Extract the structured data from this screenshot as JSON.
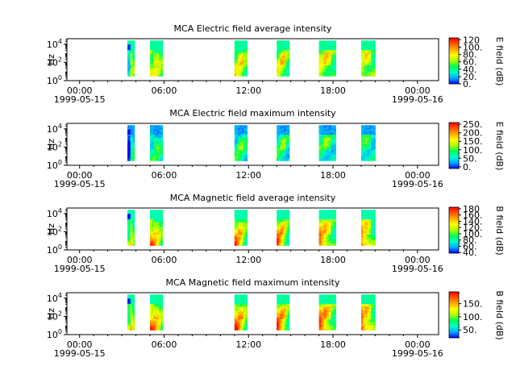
{
  "figure": {
    "colormap": [
      "#0000ff",
      "#00aaff",
      "#00ffcc",
      "#00ff55",
      "#aaff00",
      "#ffff00",
      "#ffaa00",
      "#ff5500",
      "#ff0000"
    ]
  },
  "shared": {
    "x_ticks": [
      "00:00",
      "06:00",
      "12:00",
      "18:00",
      "00:00"
    ],
    "x_tick_hours": [
      0,
      6,
      12,
      18,
      24
    ],
    "x_date_start": "1999-05-15",
    "x_date_end": "1999-05-16",
    "xlim_hours": [
      -0.9,
      25.5
    ],
    "ylabel": "Hz",
    "y_ticks": [
      "10",
      "10",
      "10"
    ],
    "y_tick_exp": [
      "0",
      "2",
      "4"
    ],
    "y_tick_logvals": [
      0,
      2,
      4
    ],
    "ylim_log": [
      0,
      4.6
    ],
    "data_ylim_log": [
      0.5,
      4.4
    ],
    "segments_hours": [
      [
        3.4,
        3.9
      ],
      [
        5.0,
        5.9
      ],
      [
        11.0,
        11.9
      ],
      [
        14.0,
        14.9
      ],
      [
        17.0,
        18.2
      ],
      [
        20.0,
        21.0
      ]
    ]
  },
  "chart_data": [
    {
      "type": "heatmap",
      "title": "MCA  Electric field average intensity",
      "colorbar_label": "E field (dB)",
      "colorbar_range": [
        0,
        125
      ],
      "colorbar_ticks": [
        "0.",
        "20.",
        "40.",
        "60.",
        "80.",
        "100.",
        "120"
      ],
      "colorbar_tick_values": [
        0,
        20,
        40,
        60,
        80,
        100,
        120
      ],
      "base_level": 0.4,
      "high_freq_level": 0.3,
      "low_freq_boost": 0.15,
      "burst_level": 0.28
    },
    {
      "type": "heatmap",
      "title": "MCA  Electric field maximum intensity",
      "colorbar_label": "E field (dB)",
      "colorbar_range": [
        -10,
        260
      ],
      "colorbar_ticks": [
        "0.",
        "50.",
        "100.",
        "150.",
        "200.",
        "250."
      ],
      "colorbar_tick_values": [
        0,
        50,
        100,
        150,
        200,
        250
      ],
      "base_level": 0.26,
      "high_freq_level": 0.12,
      "low_freq_boost": 0.05,
      "burst_level": 0.2
    },
    {
      "type": "heatmap",
      "title": "MCA  Magnetic field average intensity",
      "colorbar_label": "B field (dB)",
      "colorbar_range": [
        38,
        185
      ],
      "colorbar_ticks": [
        "40.",
        "60.",
        "80.",
        "100.",
        "120.",
        "140.",
        "160.",
        "180"
      ],
      "colorbar_tick_values": [
        40,
        60,
        80,
        100,
        120,
        140,
        160,
        180
      ],
      "base_level": 0.36,
      "high_freq_level": 0.28,
      "low_freq_boost": 0.45,
      "burst_level": 0.2
    },
    {
      "type": "heatmap",
      "title": "MCA  Magnetic field maximum intensity",
      "colorbar_label": "B field (dB)",
      "colorbar_range": [
        20,
        195
      ],
      "colorbar_ticks": [
        "50.",
        "100.",
        "150."
      ],
      "colorbar_tick_values": [
        50,
        100,
        150
      ],
      "base_level": 0.4,
      "high_freq_level": 0.3,
      "low_freq_boost": 0.45,
      "burst_level": 0.22
    }
  ]
}
